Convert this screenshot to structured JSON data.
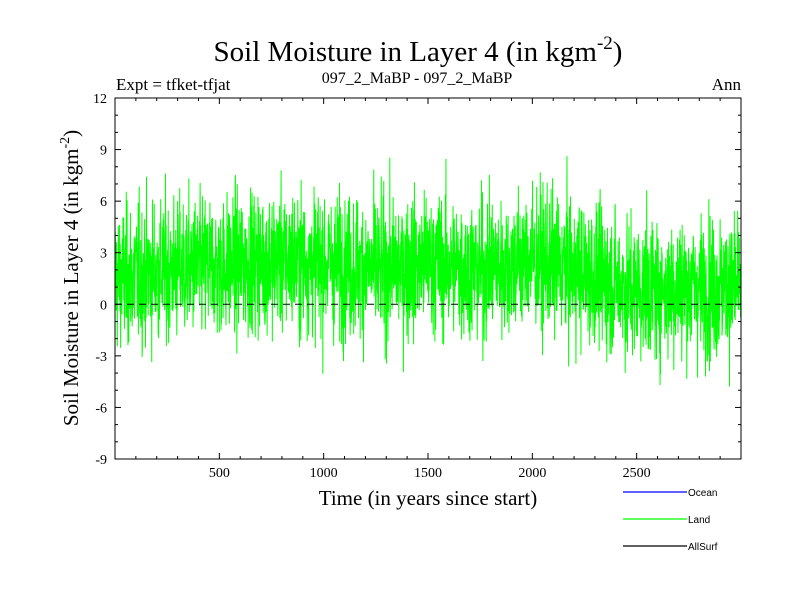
{
  "chart_data": {
    "type": "line",
    "title": "Soil Moisture in Layer 4 (in kgm",
    "title_exponent": "-2",
    "title_close": ")",
    "subtitle": "097_2_MaBP - 097_2_MaBP",
    "left_label": "Expt = tfket-tfjat",
    "right_label": "Ann",
    "xlabel": "Time (in years since start)",
    "ylabel": "Soil Moisture in Layer 4 (in kgm",
    "ylabel_exponent": "-2",
    "ylabel_close": ")",
    "xlim": [
      0,
      3000
    ],
    "ylim": [
      -9,
      12
    ],
    "x_ticks": [
      500,
      1000,
      1500,
      2000,
      2500
    ],
    "y_ticks": [
      -9,
      -6,
      -3,
      0,
      3,
      6,
      9,
      12
    ],
    "zero_line": "dashed",
    "legend": [
      {
        "name": "Ocean",
        "color": "#0000ff"
      },
      {
        "name": "Land",
        "color": "#00ff00"
      },
      {
        "name": "AllSurf",
        "color": "#000000"
      }
    ],
    "legend_placement": "bottom-right, outside plot",
    "series": [
      {
        "name": "Land",
        "color": "#00ff00",
        "x_start": 1,
        "x_step": 1,
        "envelope_x": [
          0,
          250,
          500,
          750,
          1000,
          1250,
          1500,
          1750,
          2000,
          2250,
          2500,
          2750,
          3000
        ],
        "envelope_min": [
          -7.0,
          -6.6,
          -5.6,
          -5.0,
          -5.5,
          -6.3,
          -5.5,
          -5.0,
          -5.0,
          -5.5,
          -8.0,
          -7.0,
          -6.2
        ],
        "envelope_max": [
          9.2,
          9.0,
          9.6,
          9.6,
          9.2,
          9.8,
          9.6,
          9.4,
          10.1,
          9.3,
          8.8,
          10.5,
          8.5
        ],
        "noise_amplitude": 3.2,
        "mean_by_x": [
          [
            0,
            1.5
          ],
          [
            250,
            2.0
          ],
          [
            500,
            2.2
          ],
          [
            750,
            2.6
          ],
          [
            1000,
            2.4
          ],
          [
            1250,
            2.0
          ],
          [
            1500,
            2.4
          ],
          [
            1750,
            2.0
          ],
          [
            2000,
            2.6
          ],
          [
            2250,
            1.8
          ],
          [
            2500,
            0.8
          ],
          [
            2750,
            1.0
          ],
          [
            3000,
            1.0
          ]
        ]
      }
    ]
  }
}
